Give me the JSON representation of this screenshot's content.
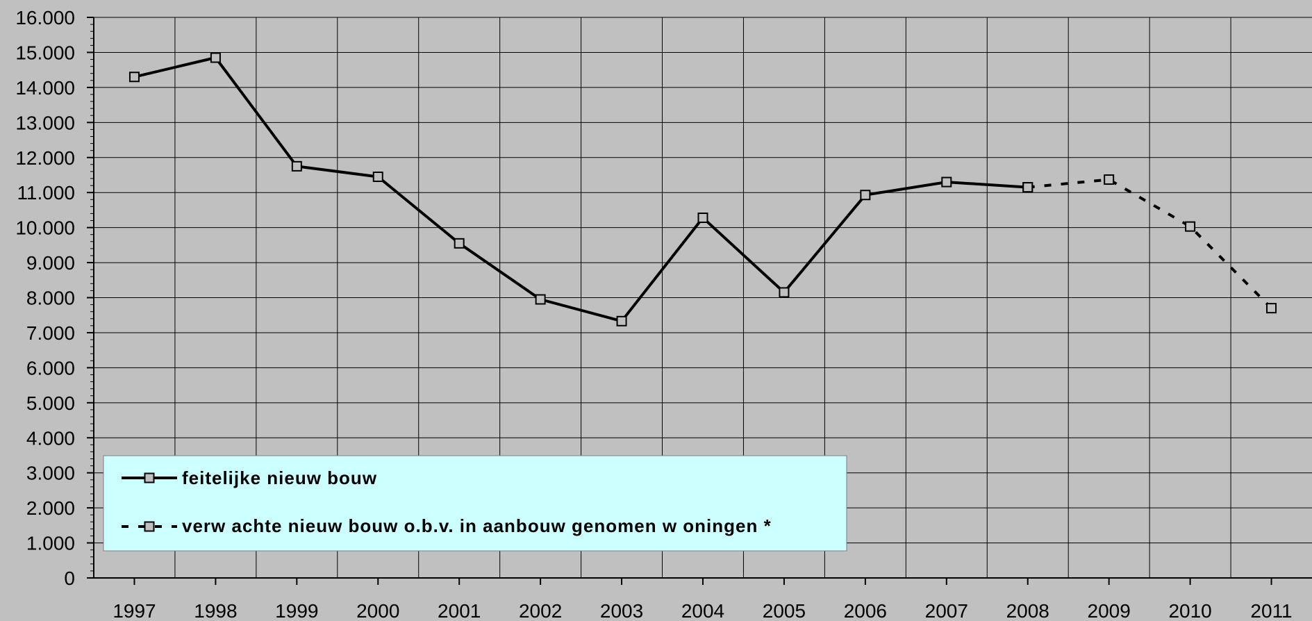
{
  "chart_data": {
    "type": "line",
    "categories": [
      "1997",
      "1998",
      "1999",
      "2000",
      "2001",
      "2002",
      "2003",
      "2004",
      "2005",
      "2006",
      "2007",
      "2008",
      "2009",
      "2010",
      "2011"
    ],
    "series": [
      {
        "name": "feitelijke nieuw bouw",
        "style": "solid",
        "values": [
          14300,
          14850,
          11750,
          11450,
          9550,
          7950,
          7330,
          10280,
          8150,
          10930,
          11300,
          11150,
          null,
          null,
          null
        ]
      },
      {
        "name": "verw achte nieuw bouw o.b.v. in aanbouw genomen w oningen *",
        "style": "dashed",
        "values": [
          null,
          null,
          null,
          null,
          null,
          null,
          null,
          null,
          null,
          null,
          null,
          11150,
          11370,
          10030,
          7700
        ]
      }
    ],
    "yticks": [
      "0",
      "1.000",
      "2.000",
      "3.000",
      "4.000",
      "5.000",
      "6.000",
      "7.000",
      "8.000",
      "9.000",
      "10.000",
      "11.000",
      "12.000",
      "13.000",
      "14.000",
      "15.000",
      "16.000"
    ],
    "ylim": [
      0,
      16000
    ],
    "grid": true,
    "legend_position": "bottom-left",
    "colors": {
      "background": "#c0c0c0",
      "plot_area": "#c0c0c0",
      "legend_background": "#ccffff",
      "line": "#000000",
      "marker_fill": "#c0c0c0"
    }
  }
}
